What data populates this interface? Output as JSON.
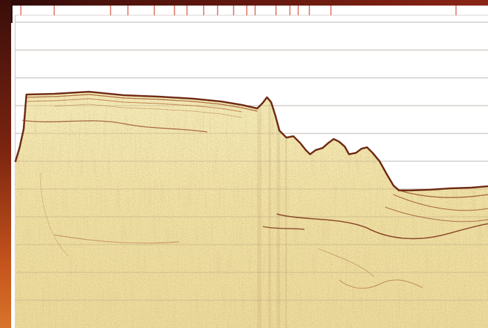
{
  "figure": {
    "axes": {
      "top_marker_ticks": [
        12,
        60,
        141,
        166,
        204,
        233,
        251,
        275,
        295,
        318,
        337,
        349,
        379,
        399,
        411,
        427,
        458,
        638
      ],
      "horizontal_gridlines": 11
    },
    "colors": {
      "background": "#ffffff",
      "sediment_base": "#f2e7ad",
      "reflector": "#8a3a1e",
      "marker": "#d23a2a",
      "gridline": "#8a7a70"
    }
  }
}
